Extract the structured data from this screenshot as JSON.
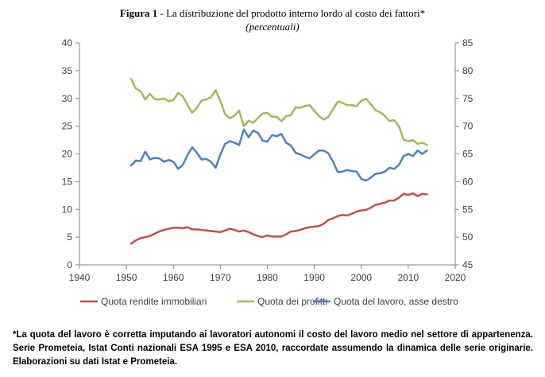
{
  "figure": {
    "label": "Figura 1",
    "title": " - La distribuzione del prodotto interno lordo al costo dei fattori*",
    "subtitle": "(percentuali)"
  },
  "chart_data": {
    "type": "line",
    "x_ticks": [
      "1940",
      "1950",
      "1960",
      "1970",
      "1980",
      "1990",
      "2000",
      "2010",
      "2020"
    ],
    "y_left_ticks": [
      "0",
      "5",
      "10",
      "15",
      "20",
      "25",
      "30",
      "35",
      "40"
    ],
    "y_right_ticks": [
      "45",
      "50",
      "55",
      "60",
      "65",
      "70",
      "75",
      "80",
      "85"
    ],
    "xlim": [
      1940,
      2020
    ],
    "ylim_left": [
      0,
      40
    ],
    "ylim_right": [
      45,
      85
    ],
    "grid": false,
    "legend_position": "bottom",
    "series": [
      {
        "name": "Quota rendite immobiliari",
        "axis": "left",
        "color": "#c0504d",
        "points": [
          [
            1951,
            3.8
          ],
          [
            1952,
            4.4
          ],
          [
            1953,
            4.8
          ],
          [
            1954,
            5.0
          ],
          [
            1955,
            5.2
          ],
          [
            1956,
            5.6
          ],
          [
            1957,
            6.0
          ],
          [
            1958,
            6.3
          ],
          [
            1959,
            6.5
          ],
          [
            1960,
            6.7
          ],
          [
            1961,
            6.7
          ],
          [
            1962,
            6.6
          ],
          [
            1963,
            6.8
          ],
          [
            1964,
            6.4
          ],
          [
            1965,
            6.4
          ],
          [
            1966,
            6.3
          ],
          [
            1967,
            6.2
          ],
          [
            1968,
            6.1
          ],
          [
            1969,
            6.0
          ],
          [
            1970,
            5.9
          ],
          [
            1971,
            6.2
          ],
          [
            1972,
            6.5
          ],
          [
            1973,
            6.3
          ],
          [
            1974,
            6.0
          ],
          [
            1975,
            6.2
          ],
          [
            1976,
            5.9
          ],
          [
            1977,
            5.5
          ],
          [
            1978,
            5.2
          ],
          [
            1979,
            5.0
          ],
          [
            1980,
            5.3
          ],
          [
            1981,
            5.1
          ],
          [
            1982,
            5.1
          ],
          [
            1983,
            5.1
          ],
          [
            1984,
            5.5
          ],
          [
            1985,
            6.0
          ],
          [
            1986,
            6.1
          ],
          [
            1987,
            6.3
          ],
          [
            1988,
            6.6
          ],
          [
            1989,
            6.8
          ],
          [
            1990,
            6.9
          ],
          [
            1991,
            7.0
          ],
          [
            1992,
            7.4
          ],
          [
            1993,
            8.1
          ],
          [
            1994,
            8.4
          ],
          [
            1995,
            8.8
          ],
          [
            1996,
            9.0
          ],
          [
            1997,
            8.9
          ],
          [
            1998,
            9.2
          ],
          [
            1999,
            9.6
          ],
          [
            2000,
            9.8
          ],
          [
            2001,
            9.9
          ],
          [
            2002,
            10.3
          ],
          [
            2003,
            10.8
          ],
          [
            2004,
            11.0
          ],
          [
            2005,
            11.2
          ],
          [
            2006,
            11.6
          ],
          [
            2007,
            11.6
          ],
          [
            2008,
            12.1
          ],
          [
            2009,
            12.8
          ],
          [
            2010,
            12.6
          ],
          [
            2011,
            12.9
          ],
          [
            2012,
            12.4
          ],
          [
            2013,
            12.8
          ],
          [
            2014,
            12.7
          ]
        ]
      },
      {
        "name": "Quota dei profitti",
        "axis": "left",
        "color": "#9bbb59",
        "points": [
          [
            1951,
            33.5
          ],
          [
            1952,
            31.8
          ],
          [
            1953,
            31.3
          ],
          [
            1954,
            29.8
          ],
          [
            1955,
            30.8
          ],
          [
            1956,
            29.9
          ],
          [
            1957,
            29.8
          ],
          [
            1958,
            30.0
          ],
          [
            1959,
            29.5
          ],
          [
            1960,
            29.7
          ],
          [
            1961,
            31.0
          ],
          [
            1962,
            30.4
          ],
          [
            1963,
            28.8
          ],
          [
            1964,
            27.4
          ],
          [
            1965,
            28.3
          ],
          [
            1966,
            29.6
          ],
          [
            1967,
            29.8
          ],
          [
            1968,
            30.2
          ],
          [
            1969,
            31.5
          ],
          [
            1970,
            29.5
          ],
          [
            1971,
            27.2
          ],
          [
            1972,
            26.4
          ],
          [
            1973,
            26.9
          ],
          [
            1974,
            27.8
          ],
          [
            1975,
            25.0
          ],
          [
            1976,
            26.0
          ],
          [
            1977,
            25.6
          ],
          [
            1978,
            26.5
          ],
          [
            1979,
            27.3
          ],
          [
            1980,
            27.4
          ],
          [
            1981,
            26.7
          ],
          [
            1982,
            26.7
          ],
          [
            1983,
            25.9
          ],
          [
            1984,
            26.8
          ],
          [
            1985,
            27.0
          ],
          [
            1986,
            28.4
          ],
          [
            1987,
            28.3
          ],
          [
            1988,
            28.6
          ],
          [
            1989,
            28.8
          ],
          [
            1990,
            27.8
          ],
          [
            1991,
            26.8
          ],
          [
            1992,
            26.2
          ],
          [
            1993,
            26.7
          ],
          [
            1994,
            28.1
          ],
          [
            1995,
            29.4
          ],
          [
            1996,
            29.2
          ],
          [
            1997,
            28.8
          ],
          [
            1998,
            28.8
          ],
          [
            1999,
            28.6
          ],
          [
            2000,
            29.6
          ],
          [
            2001,
            29.9
          ],
          [
            2002,
            29.0
          ],
          [
            2003,
            27.9
          ],
          [
            2004,
            27.5
          ],
          [
            2005,
            26.9
          ],
          [
            2006,
            25.9
          ],
          [
            2007,
            26.1
          ],
          [
            2008,
            25.0
          ],
          [
            2009,
            22.6
          ],
          [
            2010,
            22.3
          ],
          [
            2011,
            22.5
          ],
          [
            2012,
            21.8
          ],
          [
            2013,
            22.0
          ],
          [
            2014,
            21.6
          ]
        ]
      },
      {
        "name": "Quota del lavoro, asse destro",
        "axis": "right",
        "color": "#4f81bd",
        "points": [
          [
            1951,
            62.9
          ],
          [
            1952,
            63.8
          ],
          [
            1953,
            63.7
          ],
          [
            1954,
            65.4
          ],
          [
            1955,
            64.0
          ],
          [
            1956,
            64.3
          ],
          [
            1957,
            64.2
          ],
          [
            1958,
            63.6
          ],
          [
            1959,
            63.9
          ],
          [
            1960,
            63.6
          ],
          [
            1961,
            62.3
          ],
          [
            1962,
            63.0
          ],
          [
            1963,
            64.8
          ],
          [
            1964,
            66.2
          ],
          [
            1965,
            65.2
          ],
          [
            1966,
            64.0
          ],
          [
            1967,
            64.1
          ],
          [
            1968,
            63.6
          ],
          [
            1969,
            62.5
          ],
          [
            1970,
            64.9
          ],
          [
            1971,
            66.8
          ],
          [
            1972,
            67.3
          ],
          [
            1973,
            67.0
          ],
          [
            1974,
            66.6
          ],
          [
            1975,
            69.4
          ],
          [
            1976,
            68.0
          ],
          [
            1977,
            69.2
          ],
          [
            1978,
            68.8
          ],
          [
            1979,
            67.4
          ],
          [
            1980,
            67.2
          ],
          [
            1981,
            68.4
          ],
          [
            1982,
            68.2
          ],
          [
            1983,
            68.6
          ],
          [
            1984,
            67.0
          ],
          [
            1985,
            66.5
          ],
          [
            1986,
            65.2
          ],
          [
            1987,
            64.9
          ],
          [
            1988,
            64.5
          ],
          [
            1989,
            64.2
          ],
          [
            1990,
            64.9
          ],
          [
            1991,
            65.6
          ],
          [
            1992,
            65.6
          ],
          [
            1993,
            65.1
          ],
          [
            1994,
            63.6
          ],
          [
            1995,
            61.7
          ],
          [
            1996,
            61.8
          ],
          [
            1997,
            62.1
          ],
          [
            1998,
            61.9
          ],
          [
            1999,
            61.8
          ],
          [
            2000,
            60.5
          ],
          [
            2001,
            60.2
          ],
          [
            2002,
            60.7
          ],
          [
            2003,
            61.4
          ],
          [
            2004,
            61.5
          ],
          [
            2005,
            61.8
          ],
          [
            2006,
            62.5
          ],
          [
            2007,
            62.3
          ],
          [
            2008,
            63.0
          ],
          [
            2009,
            64.6
          ],
          [
            2010,
            65.0
          ],
          [
            2011,
            64.6
          ],
          [
            2012,
            65.6
          ],
          [
            2013,
            65.0
          ],
          [
            2014,
            65.6
          ]
        ]
      }
    ]
  },
  "note": "*La quota del lavoro è corretta imputando ai lavoratori autonomi il costo del lavoro medio nel settore di appartenenza. Serie Prometeia, Istat Conti nazionali ESA 1995 e ESA 2010, raccordate assumendo la dinamica delle serie originarie. Elaborazioni su dati Istat e Prometeia."
}
